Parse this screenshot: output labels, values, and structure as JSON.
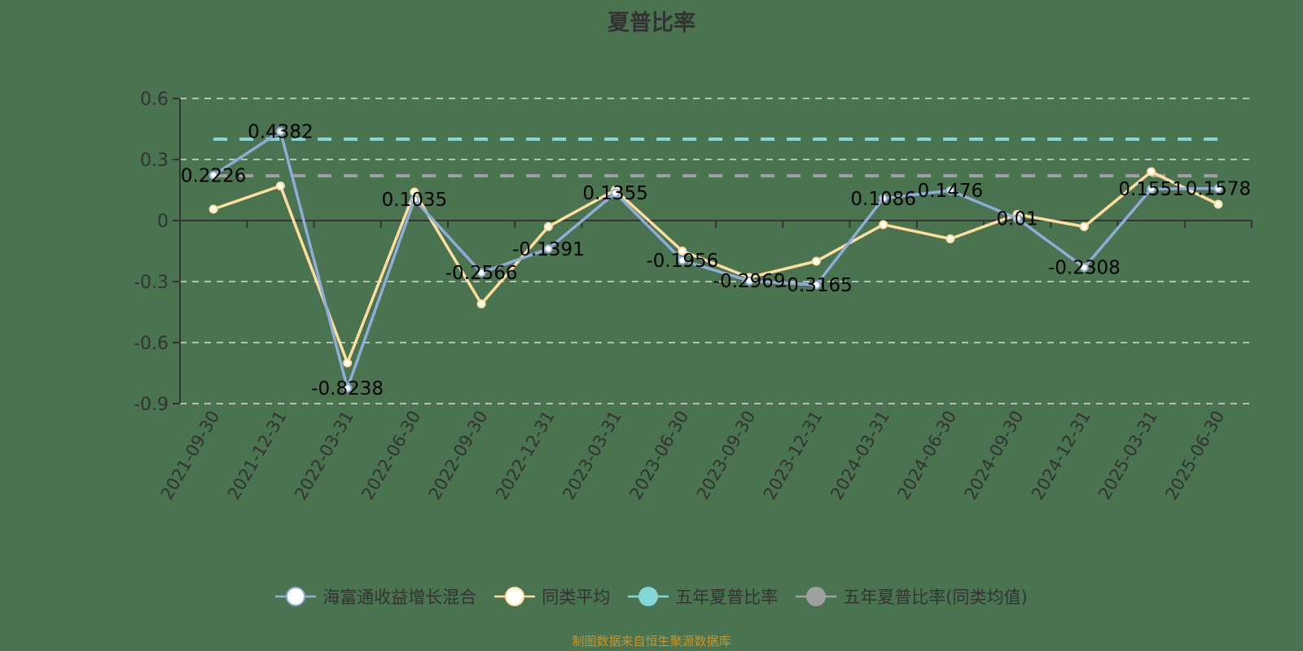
{
  "title": "夏普比率",
  "source_note": "制图数据来自恒生聚源数据库",
  "colors": {
    "background": "#4a7350",
    "fund": "#8eadd8",
    "peer": "#ffdd9c",
    "five_year": "#85d6d6",
    "five_year_peer": "#a0a0a0",
    "axis": "#333333",
    "grid": "#d9d9d9",
    "source": "#c9962b"
  },
  "legend": [
    {
      "name": "海富通收益增长混合",
      "color": "#8eadd8",
      "hollow": true
    },
    {
      "name": "同类平均",
      "color": "#ffdd9c",
      "hollow": true
    },
    {
      "name": "五年夏普比率",
      "color": "#85d6d6",
      "hollow": false
    },
    {
      "name": "五年夏普比率(同类均值)",
      "color": "#a0a0a0",
      "hollow": false
    }
  ],
  "chart_data": {
    "type": "line",
    "title": "夏普比率",
    "xlabel": "",
    "ylabel": "",
    "ylim": [
      -0.9,
      0.6
    ],
    "yticks": [
      0.6,
      0.3,
      0,
      -0.3,
      -0.6,
      -0.9
    ],
    "ytick_labels": [
      "0.6",
      "0.3",
      "0",
      "-0.3",
      "-0.6",
      "-0.9"
    ],
    "grid": "horizontal dashed",
    "legend_position": "bottom",
    "categories": [
      "2021-09-30",
      "2021-12-31",
      "2022-03-31",
      "2022-06-30",
      "2022-09-30",
      "2022-12-31",
      "2023-03-31",
      "2023-06-30",
      "2023-09-30",
      "2023-12-31",
      "2024-03-31",
      "2024-06-30",
      "2024-09-30",
      "2024-12-31",
      "2025-03-31",
      "2025-06-30"
    ],
    "series": [
      {
        "name": "海富通收益增长混合",
        "values": [
          0.2226,
          0.4382,
          -0.8238,
          0.1035,
          -0.2566,
          -0.1391,
          0.1355,
          -0.1956,
          -0.2969,
          -0.3165,
          0.1086,
          0.1476,
          0.01,
          -0.2308,
          0.1551,
          0.1578
        ],
        "labels_shown": true
      },
      {
        "name": "同类平均",
        "values": [
          0.056,
          0.17,
          -0.7,
          0.14,
          -0.41,
          -0.03,
          0.15,
          -0.15,
          -0.28,
          -0.2,
          -0.02,
          -0.09,
          0.03,
          -0.03,
          0.24,
          0.08
        ],
        "labels_shown": false
      }
    ],
    "reference_lines": [
      {
        "name": "五年夏普比率",
        "value": 0.4,
        "style": "dashed"
      },
      {
        "name": "五年夏普比率(同类均值)",
        "value": 0.22,
        "style": "dashed"
      }
    ]
  }
}
